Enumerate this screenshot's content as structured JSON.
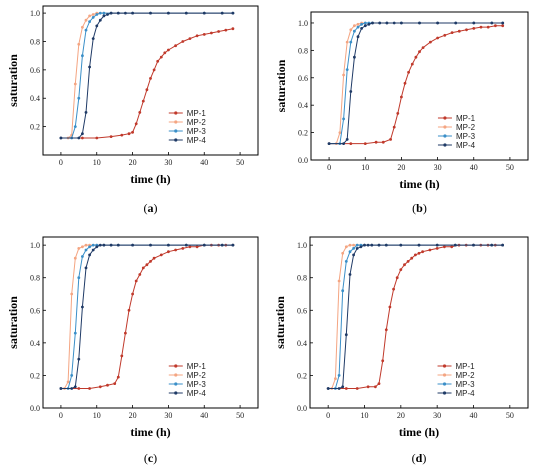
{
  "chart_data": [
    {
      "type": "line",
      "panel_label": "a",
      "caption": "(a)",
      "xlabel": "time (h)",
      "ylabel": "saturation",
      "xlim": [
        -5,
        55
      ],
      "ylim": [
        0,
        1.05
      ],
      "xticks": [
        0,
        10,
        20,
        30,
        40,
        50
      ],
      "yticks": [
        0.2,
        0.4,
        0.6,
        0.8,
        1.0
      ],
      "ytick_labels": [
        "0.2",
        "0.4",
        "0.6",
        "0.8",
        "1.0"
      ],
      "legend_position": "bottom-right",
      "series": [
        {
          "name": "MP-1",
          "color": "#c0392b",
          "x": [
            0,
            6,
            10,
            14,
            17,
            19,
            20,
            21,
            22,
            23,
            24,
            25,
            26,
            27,
            28,
            29,
            30,
            32,
            34,
            36,
            38,
            40,
            42,
            44,
            46,
            48
          ],
          "y": [
            0.12,
            0.12,
            0.12,
            0.13,
            0.14,
            0.15,
            0.16,
            0.22,
            0.3,
            0.38,
            0.46,
            0.54,
            0.6,
            0.66,
            0.69,
            0.72,
            0.74,
            0.77,
            0.8,
            0.82,
            0.84,
            0.85,
            0.86,
            0.87,
            0.88,
            0.89
          ]
        },
        {
          "name": "MP-2",
          "color": "#f4a582",
          "x": [
            0,
            2,
            3,
            4,
            5,
            6,
            7,
            8,
            9,
            10,
            12,
            14,
            16,
            20,
            25,
            30,
            35,
            40,
            45,
            48
          ],
          "y": [
            0.12,
            0.12,
            0.14,
            0.5,
            0.78,
            0.9,
            0.95,
            0.98,
            0.99,
            1,
            1,
            1,
            1,
            1,
            1,
            1,
            1,
            1,
            1,
            1
          ]
        },
        {
          "name": "MP-3",
          "color": "#3a8fc8",
          "x": [
            0,
            3,
            4,
            5,
            6,
            7,
            8,
            9,
            10,
            11,
            12,
            14,
            16,
            20,
            25,
            30,
            35,
            40,
            45,
            48
          ],
          "y": [
            0.12,
            0.12,
            0.2,
            0.4,
            0.7,
            0.88,
            0.94,
            0.97,
            0.99,
            1,
            1,
            1,
            1,
            1,
            1,
            1,
            1,
            1,
            1,
            1
          ]
        },
        {
          "name": "MP-4",
          "color": "#1f3a66",
          "x": [
            0,
            5,
            6,
            7,
            8,
            9,
            10,
            11,
            12,
            13,
            14,
            16,
            18,
            20,
            25,
            30,
            35,
            40,
            45,
            48
          ],
          "y": [
            0.12,
            0.12,
            0.15,
            0.3,
            0.62,
            0.82,
            0.91,
            0.95,
            0.98,
            0.99,
            1,
            1,
            1,
            1,
            1,
            1,
            1,
            1,
            1,
            1
          ]
        }
      ]
    },
    {
      "type": "line",
      "panel_label": "b",
      "caption": "(b)",
      "xlabel": "time (h)",
      "ylabel": "saturation",
      "xlim": [
        -5,
        55
      ],
      "ylim": [
        0,
        1.08
      ],
      "xticks": [
        0,
        10,
        20,
        30,
        40,
        50
      ],
      "yticks": [
        0.0,
        0.2,
        0.4,
        0.6,
        0.8,
        1.0
      ],
      "ytick_labels": [
        "0.0",
        "0.2",
        "0.4",
        "0.6",
        "0.8",
        "1.0"
      ],
      "legend_position": "bottom-right",
      "series": [
        {
          "name": "MP-1",
          "color": "#c0392b",
          "x": [
            0,
            6,
            10,
            13,
            15,
            17,
            18,
            19,
            20,
            21,
            22,
            23,
            24,
            25,
            26,
            28,
            30,
            32,
            34,
            36,
            38,
            40,
            42,
            44,
            46,
            48
          ],
          "y": [
            0.12,
            0.12,
            0.12,
            0.13,
            0.13,
            0.15,
            0.24,
            0.34,
            0.46,
            0.56,
            0.64,
            0.7,
            0.75,
            0.79,
            0.82,
            0.86,
            0.89,
            0.91,
            0.93,
            0.94,
            0.95,
            0.96,
            0.97,
            0.97,
            0.98,
            0.98
          ]
        },
        {
          "name": "MP-2",
          "color": "#f4a582",
          "x": [
            0,
            2,
            3,
            4,
            5,
            6,
            7,
            8,
            9,
            10,
            12,
            14,
            16,
            20,
            25,
            30,
            35,
            40,
            45,
            48
          ],
          "y": [
            0.12,
            0.12,
            0.2,
            0.62,
            0.86,
            0.95,
            0.98,
            0.99,
            1,
            1,
            1,
            1,
            1,
            1,
            1,
            1,
            1,
            1,
            1,
            1
          ]
        },
        {
          "name": "MP-3",
          "color": "#3a8fc8",
          "x": [
            0,
            3,
            4,
            5,
            6,
            7,
            8,
            9,
            10,
            11,
            12,
            14,
            16,
            20,
            25,
            30,
            35,
            40,
            45,
            48
          ],
          "y": [
            0.12,
            0.12,
            0.3,
            0.66,
            0.86,
            0.94,
            0.97,
            0.99,
            1,
            1,
            1,
            1,
            1,
            1,
            1,
            1,
            1,
            1,
            1,
            1
          ]
        },
        {
          "name": "MP-4",
          "color": "#1f3a66",
          "x": [
            0,
            4,
            5,
            6,
            7,
            8,
            9,
            10,
            11,
            12,
            14,
            16,
            18,
            20,
            25,
            30,
            35,
            40,
            45,
            48
          ],
          "y": [
            0.12,
            0.12,
            0.15,
            0.5,
            0.75,
            0.9,
            0.96,
            0.98,
            0.99,
            1,
            1,
            1,
            1,
            1,
            1,
            1,
            1,
            1,
            1,
            1
          ]
        }
      ]
    },
    {
      "type": "line",
      "panel_label": "c",
      "caption": "(c)",
      "xlabel": "time (h)",
      "ylabel": "saturation",
      "xlim": [
        -5,
        55
      ],
      "ylim": [
        0,
        1.05
      ],
      "xticks": [
        0,
        10,
        20,
        30,
        40,
        50
      ],
      "yticks": [
        0.0,
        0.2,
        0.4,
        0.6,
        0.8,
        1.0
      ],
      "ytick_labels": [
        "0.0",
        "0.2",
        "0.4",
        "0.6",
        "0.8",
        "1.0"
      ],
      "legend_position": "bottom-right",
      "series": [
        {
          "name": "MP-1",
          "color": "#c0392b",
          "x": [
            0,
            5,
            8,
            11,
            13,
            15,
            16,
            17,
            18,
            19,
            20,
            21,
            22,
            23,
            24,
            25,
            26,
            28,
            30,
            32,
            34,
            36,
            38,
            40,
            42,
            44,
            46,
            48
          ],
          "y": [
            0.12,
            0.12,
            0.12,
            0.13,
            0.14,
            0.15,
            0.19,
            0.32,
            0.46,
            0.6,
            0.7,
            0.78,
            0.82,
            0.86,
            0.88,
            0.9,
            0.92,
            0.94,
            0.96,
            0.97,
            0.98,
            0.99,
            0.99,
            1,
            1,
            1,
            1,
            1
          ]
        },
        {
          "name": "MP-2",
          "color": "#f4a582",
          "x": [
            0,
            1,
            2,
            3,
            4,
            5,
            6,
            7,
            8,
            10,
            12,
            14,
            16,
            20,
            25,
            30,
            35,
            40,
            45,
            48
          ],
          "y": [
            0.12,
            0.12,
            0.16,
            0.7,
            0.92,
            0.98,
            0.99,
            1,
            1,
            1,
            1,
            1,
            1,
            1,
            1,
            1,
            1,
            1,
            1,
            1
          ]
        },
        {
          "name": "MP-3",
          "color": "#3a8fc8",
          "x": [
            0,
            2,
            3,
            4,
            5,
            6,
            7,
            8,
            9,
            10,
            12,
            14,
            16,
            20,
            25,
            30,
            35,
            40,
            45,
            48
          ],
          "y": [
            0.12,
            0.12,
            0.2,
            0.46,
            0.8,
            0.93,
            0.97,
            0.99,
            1,
            1,
            1,
            1,
            1,
            1,
            1,
            1,
            1,
            1,
            1,
            1
          ]
        },
        {
          "name": "MP-4",
          "color": "#1f3a66",
          "x": [
            0,
            3,
            4,
            5,
            6,
            7,
            8,
            9,
            10,
            11,
            12,
            14,
            16,
            20,
            25,
            30,
            35,
            40,
            45,
            48
          ],
          "y": [
            0.12,
            0.12,
            0.13,
            0.3,
            0.62,
            0.86,
            0.94,
            0.97,
            0.99,
            1,
            1,
            1,
            1,
            1,
            1,
            1,
            1,
            1,
            1,
            1
          ]
        }
      ]
    },
    {
      "type": "line",
      "panel_label": "d",
      "caption": "(d)",
      "xlabel": "time (h)",
      "ylabel": "saturation",
      "xlim": [
        -5,
        55
      ],
      "ylim": [
        0,
        1.05
      ],
      "xticks": [
        0,
        10,
        20,
        30,
        40,
        50
      ],
      "yticks": [
        0.0,
        0.2,
        0.4,
        0.6,
        0.8,
        1.0
      ],
      "ytick_labels": [
        "0.0",
        "0.2",
        "0.4",
        "0.6",
        "0.8",
        "1.0"
      ],
      "legend_position": "bottom-right",
      "series": [
        {
          "name": "MP-1",
          "color": "#c0392b",
          "x": [
            0,
            5,
            8,
            11,
            13,
            14,
            15,
            16,
            17,
            18,
            19,
            20,
            21,
            22,
            23,
            24,
            25,
            26,
            28,
            30,
            32,
            34,
            36,
            38,
            40,
            42,
            44,
            46,
            48
          ],
          "y": [
            0.12,
            0.12,
            0.12,
            0.13,
            0.13,
            0.15,
            0.29,
            0.48,
            0.62,
            0.73,
            0.8,
            0.85,
            0.88,
            0.9,
            0.92,
            0.94,
            0.95,
            0.96,
            0.97,
            0.98,
            0.99,
            0.99,
            1,
            1,
            1,
            1,
            1,
            1,
            1
          ]
        },
        {
          "name": "MP-2",
          "color": "#f4a582",
          "x": [
            0,
            1,
            2,
            3,
            4,
            5,
            6,
            7,
            8,
            10,
            12,
            14,
            16,
            20,
            25,
            30,
            35,
            40,
            45,
            48
          ],
          "y": [
            0.12,
            0.12,
            0.18,
            0.78,
            0.95,
            0.99,
            1,
            1,
            1,
            1,
            1,
            1,
            1,
            1,
            1,
            1,
            1,
            1,
            1,
            1
          ]
        },
        {
          "name": "MP-3",
          "color": "#3a8fc8",
          "x": [
            0,
            2,
            3,
            4,
            5,
            6,
            7,
            8,
            9,
            10,
            12,
            14,
            16,
            20,
            25,
            30,
            35,
            40,
            45,
            48
          ],
          "y": [
            0.12,
            0.12,
            0.2,
            0.72,
            0.9,
            0.96,
            0.98,
            1,
            1,
            1,
            1,
            1,
            1,
            1,
            1,
            1,
            1,
            1,
            1,
            1
          ]
        },
        {
          "name": "MP-4",
          "color": "#1f3a66",
          "x": [
            0,
            3,
            4,
            5,
            6,
            7,
            8,
            9,
            10,
            11,
            12,
            14,
            16,
            20,
            25,
            30,
            35,
            40,
            45,
            48
          ],
          "y": [
            0.12,
            0.12,
            0.13,
            0.45,
            0.82,
            0.94,
            0.98,
            0.99,
            1,
            1,
            1,
            1,
            1,
            1,
            1,
            1,
            1,
            1,
            1,
            1
          ]
        }
      ]
    }
  ]
}
